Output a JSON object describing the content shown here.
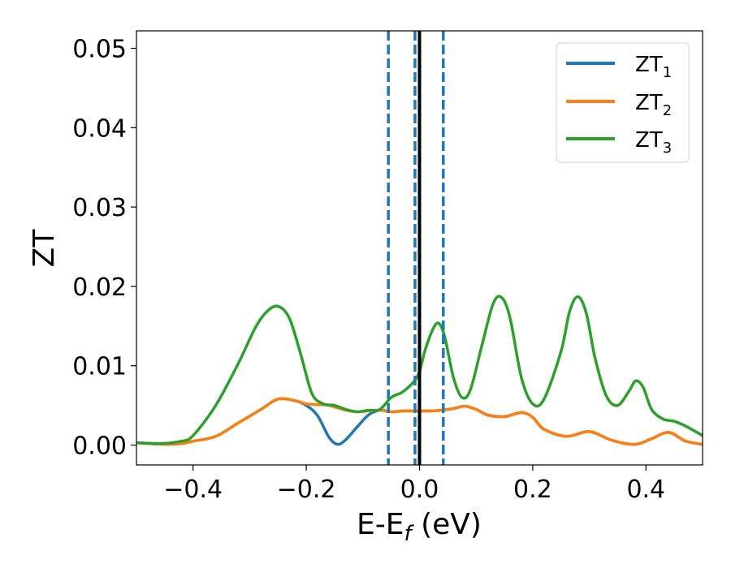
{
  "chart_data": {
    "type": "line",
    "xlabel": "E-E",
    "xlabel_sub": "f",
    "xlabel_unit": " (eV)",
    "ylabel": "ZT",
    "xlim": [
      -0.5,
      0.5
    ],
    "ylim": [
      -0.0025,
      0.0522
    ],
    "x_ticks": [
      -0.4,
      -0.2,
      0.0,
      0.2,
      0.4
    ],
    "x_tick_labels": [
      "−0.4",
      "−0.2",
      "0.0",
      "0.2",
      "0.4"
    ],
    "y_ticks": [
      0.0,
      0.01,
      0.02,
      0.03,
      0.04,
      0.05
    ],
    "y_tick_labels": [
      "0.00",
      "0.01",
      "0.02",
      "0.03",
      "0.04",
      "0.05"
    ],
    "grid": false,
    "legend_position": "top-right",
    "vertical_lines": [
      {
        "x": -0.055,
        "style": "dashed",
        "color": "#1f77b4"
      },
      {
        "x": -0.008,
        "style": "dashed",
        "color": "#1f77b4"
      },
      {
        "x": 0.042,
        "style": "dashed",
        "color": "#1f77b4"
      },
      {
        "x": 0.0,
        "style": "solid",
        "color": "#000000"
      }
    ],
    "series": [
      {
        "name": "ZT",
        "sub": "1",
        "color": "#1f77b4",
        "x": [
          -0.5,
          -0.45,
          -0.42,
          -0.4,
          -0.36,
          -0.32,
          -0.28,
          -0.25,
          -0.22,
          -0.2,
          -0.18,
          -0.16,
          -0.145,
          -0.13,
          -0.11,
          -0.09,
          -0.07,
          -0.05,
          -0.03,
          -0.01,
          0.0,
          0.02,
          0.04,
          0.06,
          0.08,
          0.1,
          0.12,
          0.15,
          0.18,
          0.2,
          0.22,
          0.26,
          0.3,
          0.34,
          0.38,
          0.41,
          0.44,
          0.47,
          0.5
        ],
        "y": [
          0.0003,
          0.0001,
          0.0002,
          0.0005,
          0.0011,
          0.0028,
          0.0045,
          0.0058,
          0.0056,
          0.005,
          0.0037,
          0.001,
          0.0001,
          0.0007,
          0.0023,
          0.0038,
          0.0044,
          0.0042,
          0.0043,
          0.0043,
          0.0043,
          0.0043,
          0.0044,
          0.0046,
          0.0049,
          0.0045,
          0.0038,
          0.0036,
          0.0041,
          0.0035,
          0.002,
          0.0011,
          0.0017,
          0.0006,
          0.0001,
          0.0008,
          0.0016,
          0.0005,
          0.0001
        ]
      },
      {
        "name": "ZT",
        "sub": "2",
        "color": "#ff7f0e",
        "x": [
          -0.5,
          -0.45,
          -0.42,
          -0.4,
          -0.36,
          -0.32,
          -0.28,
          -0.25,
          -0.22,
          -0.2,
          -0.18,
          -0.16,
          -0.13,
          -0.11,
          -0.09,
          -0.07,
          -0.05,
          -0.03,
          -0.01,
          0.0,
          0.02,
          0.04,
          0.06,
          0.08,
          0.1,
          0.12,
          0.15,
          0.18,
          0.2,
          0.22,
          0.26,
          0.3,
          0.34,
          0.38,
          0.41,
          0.44,
          0.47,
          0.5
        ],
        "y": [
          0.0003,
          0.0001,
          0.0002,
          0.0005,
          0.0011,
          0.0028,
          0.0045,
          0.0058,
          0.0056,
          0.0052,
          0.0051,
          0.005,
          0.0044,
          0.0042,
          0.0043,
          0.0044,
          0.0042,
          0.0043,
          0.0043,
          0.0043,
          0.0043,
          0.0044,
          0.0046,
          0.0049,
          0.0045,
          0.0038,
          0.0036,
          0.0041,
          0.0035,
          0.002,
          0.0011,
          0.0017,
          0.0006,
          0.0001,
          0.0008,
          0.0016,
          0.0005,
          0.0001
        ]
      },
      {
        "name": "ZT",
        "sub": "3",
        "color": "#2ca02c",
        "x": [
          -0.5,
          -0.46,
          -0.42,
          -0.4,
          -0.36,
          -0.32,
          -0.29,
          -0.27,
          -0.25,
          -0.23,
          -0.21,
          -0.19,
          -0.17,
          -0.15,
          -0.13,
          -0.11,
          -0.09,
          -0.07,
          -0.05,
          -0.03,
          -0.01,
          0.0,
          0.01,
          0.025,
          0.035,
          0.045,
          0.06,
          0.075,
          0.09,
          0.11,
          0.13,
          0.145,
          0.16,
          0.18,
          0.2,
          0.22,
          0.25,
          0.265,
          0.28,
          0.295,
          0.31,
          0.33,
          0.35,
          0.37,
          0.382,
          0.395,
          0.41,
          0.43,
          0.45,
          0.47,
          0.5
        ],
        "y": [
          0.0003,
          0.0002,
          0.0005,
          0.0012,
          0.005,
          0.0103,
          0.0148,
          0.0168,
          0.0175,
          0.016,
          0.0115,
          0.0065,
          0.0052,
          0.005,
          0.0045,
          0.0042,
          0.0044,
          0.0045,
          0.006,
          0.0067,
          0.008,
          0.0093,
          0.012,
          0.0148,
          0.0153,
          0.0135,
          0.0085,
          0.006,
          0.007,
          0.0125,
          0.0178,
          0.0186,
          0.016,
          0.0085,
          0.0052,
          0.0058,
          0.0118,
          0.0168,
          0.0187,
          0.0165,
          0.011,
          0.0062,
          0.005,
          0.0068,
          0.0081,
          0.0073,
          0.0045,
          0.0033,
          0.003,
          0.0024,
          0.0012
        ]
      }
    ]
  }
}
